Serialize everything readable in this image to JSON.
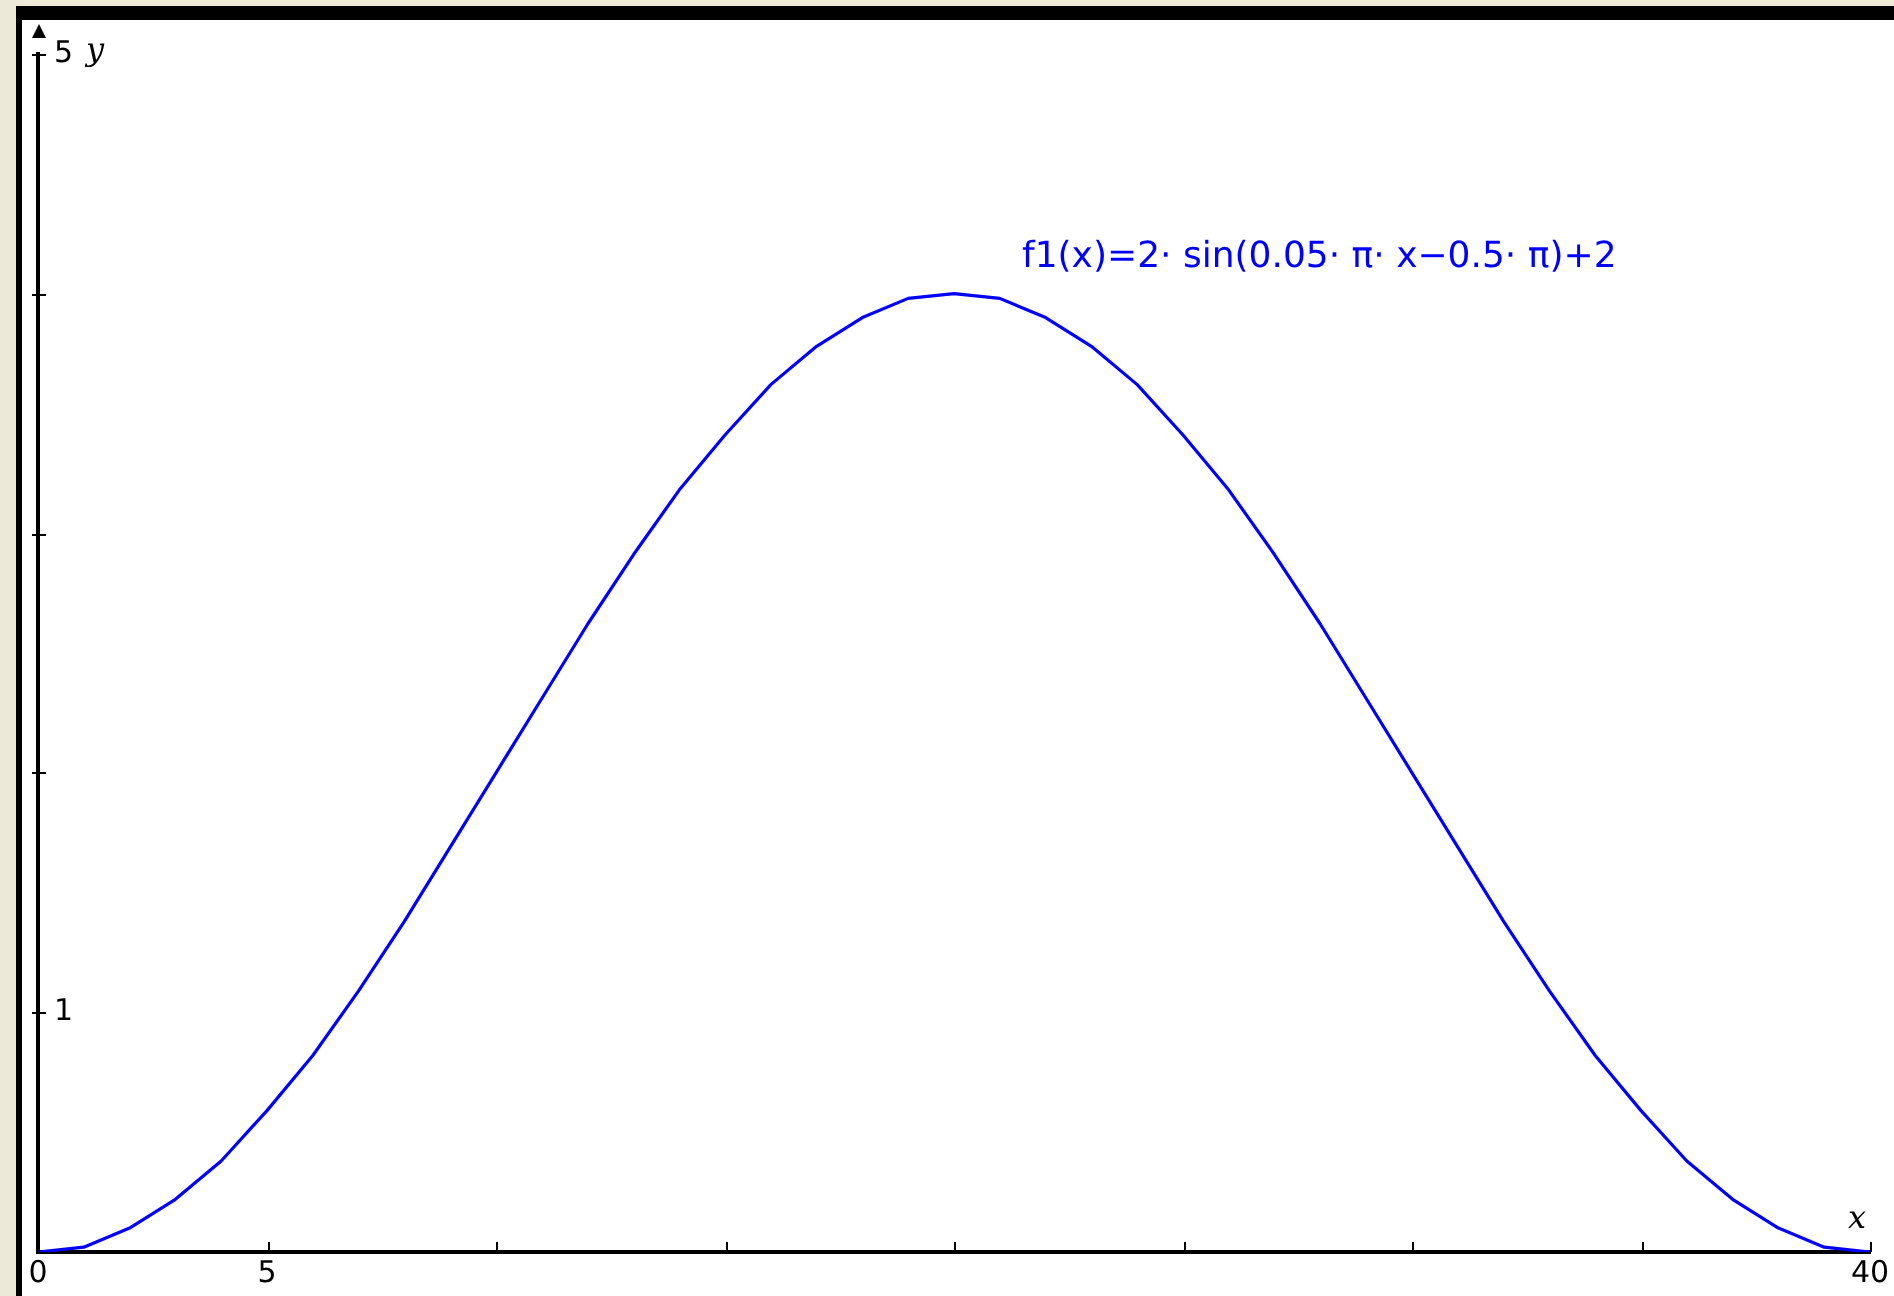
{
  "chart_data": {
    "type": "line",
    "xlabel": "x",
    "ylabel": "y",
    "x": [
      0,
      1,
      2,
      3,
      4,
      5,
      6,
      7,
      8,
      9,
      10,
      11,
      12,
      13,
      14,
      15,
      16,
      17,
      18,
      19,
      20,
      21,
      22,
      23,
      24,
      25,
      26,
      27,
      28,
      29,
      30,
      31,
      32,
      33,
      34,
      35,
      36,
      37,
      38,
      39,
      40
    ],
    "series": [
      {
        "name": "f1(x)=2· sin(0.05· π· x−0.5· π)+2",
        "color": "#0000ff",
        "values": [
          0,
          0.02,
          0.1,
          0.22,
          0.38,
          0.59,
          0.82,
          1.09,
          1.38,
          1.69,
          2,
          2.31,
          2.62,
          2.91,
          3.18,
          3.41,
          3.62,
          3.78,
          3.9,
          3.98,
          4,
          3.98,
          3.9,
          3.78,
          3.62,
          3.41,
          3.18,
          2.91,
          2.62,
          2.31,
          2,
          1.69,
          1.38,
          1.09,
          0.82,
          0.59,
          0.38,
          0.22,
          0.1,
          0.02,
          0
        ]
      }
    ],
    "xlim": [
      0,
      40
    ],
    "xticks": [
      0,
      5,
      {
        "value": 10,
        "label": null
      },
      {
        "value": 15,
        "label": null
      },
      {
        "value": 20,
        "label": null
      },
      {
        "value": 25,
        "label": null
      },
      {
        "value": 30,
        "label": null
      },
      {
        "value": 35,
        "label": null
      },
      40
    ],
    "ylim": [
      0,
      5
    ],
    "yticks": [
      1,
      {
        "value": 2,
        "label": null
      },
      {
        "value": 3,
        "label": null
      },
      {
        "value": 4,
        "label": null
      },
      5
    ],
    "marker": "none",
    "line_style": "solid"
  }
}
